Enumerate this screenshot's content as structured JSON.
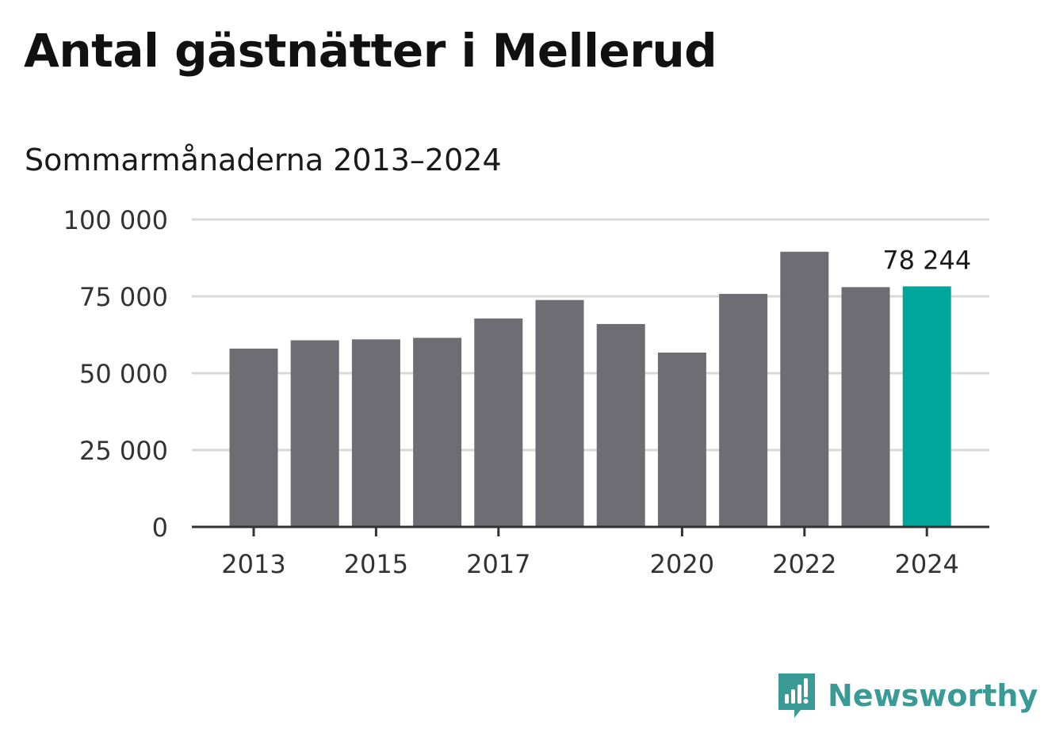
{
  "title": "Antal gästnätter i Mellerud",
  "subtitle": "Sommarmånaderna 2013–2024",
  "brand": {
    "name": "Newsworthy",
    "icon": "newsworthy-logo-icon"
  },
  "colors": {
    "bar": "#6e6d73",
    "highlight": "#00a69b",
    "grid": "#d9d9d9",
    "axis": "#333333",
    "brand": "#3a9a96"
  },
  "chart_data": {
    "type": "bar",
    "categories": [
      "2013",
      "2014",
      "2015",
      "2016",
      "2017",
      "2018",
      "2019",
      "2020",
      "2021",
      "2022",
      "2023",
      "2024"
    ],
    "values": [
      58000,
      60700,
      61000,
      61500,
      67800,
      73800,
      66000,
      56700,
      75800,
      89500,
      78000,
      78244
    ],
    "highlight_index": 11,
    "highlight_label": "78 244",
    "ylim": [
      0,
      100000
    ],
    "yticks": [
      0,
      25000,
      50000,
      75000,
      100000
    ],
    "ytick_labels": [
      "0",
      "25 000",
      "50 000",
      "75 000",
      "100 000"
    ],
    "xtick_labels": [
      "2013",
      "2015",
      "2017",
      "2020",
      "2022",
      "2024"
    ],
    "grid": true,
    "xlabel": "",
    "ylabel": ""
  }
}
